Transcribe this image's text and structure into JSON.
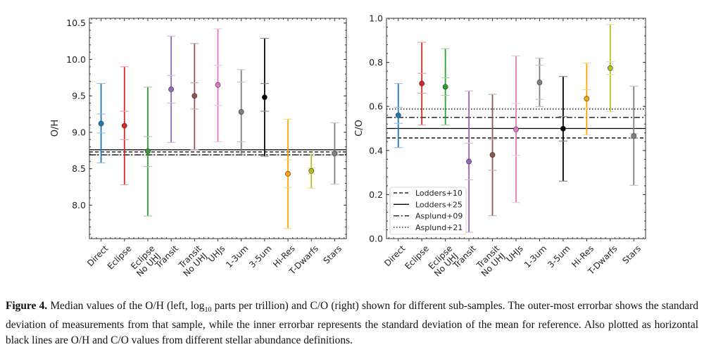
{
  "chart_data": [
    {
      "type": "errorbar",
      "ylabel": "O/H",
      "ylim": [
        7.54,
        10.565
      ],
      "yticks": [
        "8.0",
        "8.5",
        "9.0",
        "9.5",
        "10.0",
        "10.5"
      ],
      "categories": [
        [
          "Direct"
        ],
        [
          "Eclipse"
        ],
        [
          "Eclipse",
          "No UHJ"
        ],
        [
          "Transit"
        ],
        [
          "Transit",
          "No UHJ"
        ],
        [
          "UHJs"
        ],
        [
          "1-3um"
        ],
        [
          "3-5um"
        ],
        [
          "Hi-Res"
        ],
        [
          "T-Dwarfs"
        ],
        [
          "Stars"
        ]
      ],
      "colors": [
        "#1f77b4",
        "#d62728",
        "#2ca02c",
        "#9467bd",
        "#8c564b",
        "#e377c2",
        "#7f7f7f",
        "#000000",
        "#ffa500",
        "#bcbd22",
        "#7f7f7f"
      ],
      "values": [
        9.12,
        9.09,
        8.74,
        9.59,
        9.5,
        9.65,
        9.28,
        9.48,
        8.43,
        8.47,
        8.71
      ],
      "outer_low": [
        8.58,
        8.28,
        7.85,
        8.86,
        8.76,
        8.87,
        8.7,
        8.67,
        7.68,
        8.23,
        8.29
      ],
      "outer_high": [
        9.67,
        9.9,
        9.62,
        10.32,
        10.22,
        10.42,
        9.86,
        10.29,
        9.18,
        8.7,
        9.13
      ],
      "inner_low": [
        8.99,
        8.9,
        8.53,
        9.4,
        9.32,
        9.37,
        8.87,
        9.29,
        8.24,
        8.43,
        8.69
      ],
      "inner_high": [
        9.25,
        9.29,
        8.94,
        9.78,
        9.68,
        9.92,
        9.69,
        9.67,
        8.62,
        8.51,
        8.73
      ],
      "reference_lines": [
        {
          "name": "Lodders+10",
          "style": "dashed",
          "value": 8.73
        },
        {
          "name": "Lodders+25",
          "style": "solid",
          "value": 8.76
        },
        {
          "name": "Asplund+09",
          "style": "dashdot",
          "value": 8.69
        },
        {
          "name": "Asplund+21",
          "style": "dotted",
          "value": 8.69
        }
      ],
      "legend": null
    },
    {
      "type": "errorbar",
      "ylabel": "C/O",
      "ylim": [
        0.0,
        1.0
      ],
      "yticks": [
        "0.0",
        "0.2",
        "0.4",
        "0.6",
        "0.8",
        "1.0"
      ],
      "categories": [
        [
          "Direct"
        ],
        [
          "Eclipse"
        ],
        [
          "Eclipse",
          "No UHJ"
        ],
        [
          "Transit"
        ],
        [
          "Transit",
          "No UHJ"
        ],
        [
          "UHJs"
        ],
        [
          "1-3um"
        ],
        [
          "3-5um"
        ],
        [
          "Hi-Res"
        ],
        [
          "T-Dwarfs"
        ],
        [
          "Stars"
        ]
      ],
      "colors": [
        "#1f77b4",
        "#d62728",
        "#2ca02c",
        "#9467bd",
        "#8c564b",
        "#e377c2",
        "#7f7f7f",
        "#000000",
        "#ffa500",
        "#bcbd22",
        "#7f7f7f"
      ],
      "values": [
        0.56,
        0.704,
        0.689,
        0.35,
        0.38,
        0.496,
        0.709,
        0.499,
        0.635,
        0.774,
        0.466
      ],
      "outer_low": [
        0.413,
        0.516,
        0.516,
        0.029,
        0.104,
        0.164,
        0.599,
        0.261,
        0.471,
        0.577,
        0.242
      ],
      "outer_high": [
        0.704,
        0.891,
        0.862,
        0.67,
        0.655,
        0.829,
        0.819,
        0.736,
        0.797,
        0.972,
        0.692
      ],
      "inner_low": [
        0.523,
        0.66,
        0.65,
        0.267,
        0.31,
        0.378,
        0.632,
        0.443,
        0.593,
        0.745,
        0.458
      ],
      "inner_high": [
        0.596,
        0.75,
        0.73,
        0.433,
        0.45,
        0.613,
        0.787,
        0.554,
        0.676,
        0.803,
        0.476
      ],
      "reference_lines": [
        {
          "name": "Lodders+10",
          "style": "dashed",
          "value": 0.457
        },
        {
          "name": "Lodders+25",
          "style": "solid",
          "value": 0.5
        },
        {
          "name": "Asplund+09",
          "style": "dashdot",
          "value": 0.55
        },
        {
          "name": "Asplund+21",
          "style": "dotted",
          "value": 0.588
        }
      ],
      "legend": "lower-left"
    }
  ],
  "caption": {
    "label": "Figure 4.",
    "text_before": "Median values of the O/H (left, log",
    "subscript": "10",
    "text_after": " parts per trillion) and C/O (right) shown for different sub-samples. The outer-most errorbar shows the standard deviation of measurements from that sample, while the inner errorbar represents the standard deviation of the mean for reference. Also plotted as horizontal black lines are O/H and C/O values from different stellar abundance definitions."
  }
}
